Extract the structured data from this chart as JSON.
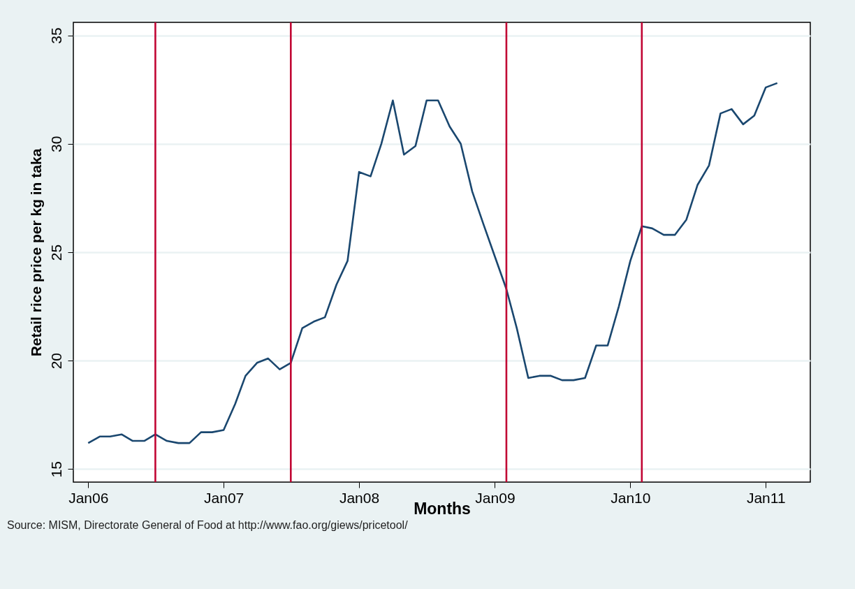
{
  "chart_data": {
    "type": "line",
    "xlabel": "Months",
    "ylabel": "Retail rice price per kg in taka",
    "annotations": [
      "Source: MISM, Directorate General of Food at http://www.fao.org/giews/pricetool/"
    ],
    "x": [
      "2006-01",
      "2006-02",
      "2006-03",
      "2006-04",
      "2006-05",
      "2006-06",
      "2006-07",
      "2006-08",
      "2006-09",
      "2006-10",
      "2006-11",
      "2006-12",
      "2007-01",
      "2007-02",
      "2007-03",
      "2007-04",
      "2007-05",
      "2007-06",
      "2007-07",
      "2007-08",
      "2007-09",
      "2007-10",
      "2007-11",
      "2007-12",
      "2008-01",
      "2008-02",
      "2008-03",
      "2008-04",
      "2008-05",
      "2008-06",
      "2008-07",
      "2008-08",
      "2008-09",
      "2008-10",
      "2008-11",
      "2008-12",
      "2009-01",
      "2009-02",
      "2009-03",
      "2009-04",
      "2009-05",
      "2009-06",
      "2009-07",
      "2009-08",
      "2009-09",
      "2009-10",
      "2009-11",
      "2009-12",
      "2010-01",
      "2010-02",
      "2010-03",
      "2010-04",
      "2010-05",
      "2010-06",
      "2010-07",
      "2010-08",
      "2010-09",
      "2010-10",
      "2010-11",
      "2010-12",
      "2011-01",
      "2011-02"
    ],
    "series": [
      {
        "color": "#1a476f",
        "values": [
          16.2,
          16.5,
          16.5,
          16.6,
          16.3,
          16.3,
          16.6,
          16.3,
          16.2,
          16.2,
          16.7,
          16.7,
          16.8,
          18.0,
          19.3,
          19.9,
          20.1,
          19.6,
          19.9,
          21.5,
          21.8,
          22.0,
          23.5,
          24.6,
          28.7,
          28.5,
          30.0,
          32.0,
          29.5,
          29.9,
          32.0,
          32.0,
          30.8,
          30.0,
          27.8,
          26.3,
          24.8,
          23.3,
          21.5,
          19.2,
          19.3,
          19.3,
          19.1,
          19.1,
          19.2,
          20.7,
          20.7,
          22.5,
          24.6,
          26.2,
          26.1,
          25.8,
          25.8,
          26.5,
          28.1,
          29.0,
          31.4,
          31.6,
          30.9,
          31.3,
          32.6,
          32.8
        ]
      }
    ],
    "xlim": [
      "2005-11-22",
      "2011-05-01"
    ],
    "xticks": [
      {
        "value": "2006-01",
        "label": "Jan06"
      },
      {
        "value": "2007-01",
        "label": "Jan07"
      },
      {
        "value": "2008-01",
        "label": "Jan08"
      },
      {
        "value": "2009-01",
        "label": "Jan09"
      },
      {
        "value": "2010-01",
        "label": "Jan10"
      },
      {
        "value": "2011-01",
        "label": "Jan11"
      }
    ],
    "ylim": [
      14.4,
      35.6
    ],
    "yticks": [
      15,
      20,
      25,
      30,
      35
    ],
    "grid": "y",
    "line_style": "solid",
    "marker": "none",
    "ref_lines": [
      {
        "axis": "x",
        "value": "2006-07",
        "color": "#c10534"
      },
      {
        "axis": "x",
        "value": "2007-07",
        "color": "#c10534"
      },
      {
        "axis": "x",
        "value": "2009-02",
        "color": "#c10534"
      },
      {
        "axis": "x",
        "value": "2010-02",
        "color": "#c10534"
      }
    ]
  }
}
